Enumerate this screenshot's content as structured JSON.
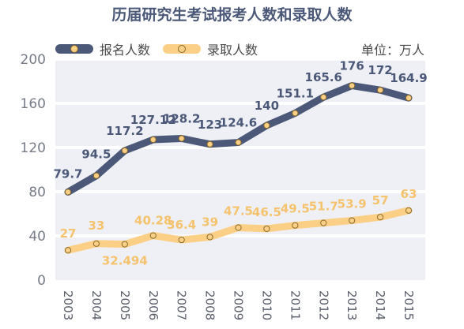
{
  "chart_data": {
    "type": "line",
    "title": "历届研究生考试报考人数和录取人数",
    "unit": "单位：万人",
    "categories": [
      "2003",
      "2004",
      "2005",
      "2006",
      "2007",
      "2008",
      "2009",
      "2010",
      "2011",
      "2012",
      "2013",
      "2014",
      "2015"
    ],
    "series": [
      {
        "name": "报名人数",
        "color": "#4b5878",
        "values": [
          79.7,
          94.5,
          117.2,
          127.12,
          128.2,
          123,
          124.6,
          140,
          151.1,
          165.6,
          176,
          172,
          164.9
        ],
        "labels": [
          "79.7",
          "94.5",
          "117.2",
          "127.12",
          "128.2",
          "123",
          "124.6",
          "140",
          "151.1",
          "165.6",
          "176",
          "172",
          "164.9"
        ]
      },
      {
        "name": "录取人数",
        "color": "#fbcf86",
        "values": [
          27,
          33,
          32.494,
          40.28,
          36.4,
          39,
          47.5,
          46.5,
          49.5,
          51.7,
          53.9,
          57,
          63
        ],
        "labels": [
          "27",
          "33",
          "32.494",
          "40.28",
          "36.4",
          "39",
          "47.5",
          "46.5",
          "49.5",
          "51.7",
          "53.9",
          "57",
          "63"
        ]
      }
    ],
    "ylim": [
      0,
      200
    ],
    "yticks": [
      0,
      40,
      80,
      120,
      160,
      200
    ],
    "legend_position": "top-left",
    "grid": true,
    "background_color": "#eef0f5"
  }
}
